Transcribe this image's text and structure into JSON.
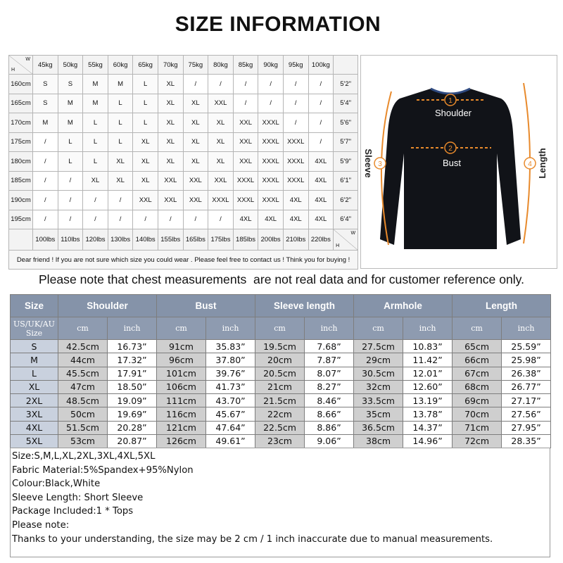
{
  "header": {
    "title": "SIZE INFORMATION"
  },
  "size_guide": {
    "corner_h": "H",
    "corner_w": "W",
    "weights": [
      "45kg",
      "50kg",
      "55kg",
      "60kg",
      "65kg",
      "70kg",
      "75kg",
      "80kg",
      "85kg",
      "90kg",
      "95kg",
      "100kg"
    ],
    "heights": [
      "160cm",
      "165cm",
      "170cm",
      "175cm",
      "180cm",
      "185cm",
      "190cm",
      "195cm"
    ],
    "feet": [
      "5'2\"",
      "5'4\"",
      "5'6\"",
      "5'7\"",
      "5'9\"",
      "6'1\"",
      "6'2\"",
      "6'4\""
    ],
    "pounds": [
      "100lbs",
      "110lbs",
      "120lbs",
      "130lbs",
      "140lbs",
      "155lbs",
      "165lbs",
      "175lbs",
      "185lbs",
      "200lbs",
      "210lbs",
      "220lbs"
    ],
    "grid": [
      [
        "S",
        "S",
        "M",
        "M",
        "L",
        "XL",
        "/",
        "/",
        "/",
        "/",
        "/",
        "/"
      ],
      [
        "S",
        "M",
        "M",
        "L",
        "L",
        "XL",
        "XL",
        "XXL",
        "/",
        "/",
        "/",
        "/"
      ],
      [
        "M",
        "M",
        "L",
        "L",
        "L",
        "XL",
        "XL",
        "XL",
        "XXL",
        "XXXL",
        "/",
        "/"
      ],
      [
        "/",
        "L",
        "L",
        "L",
        "XL",
        "XL",
        "XL",
        "XL",
        "XXL",
        "XXXL",
        "XXXL",
        "/"
      ],
      [
        "/",
        "L",
        "L",
        "XL",
        "XL",
        "XL",
        "XL",
        "XL",
        "XXL",
        "XXXL",
        "XXXL",
        "4XL"
      ],
      [
        "/",
        "/",
        "XL",
        "XL",
        "XL",
        "XXL",
        "XXL",
        "XXL",
        "XXXL",
        "XXXL",
        "XXXL",
        "4XL"
      ],
      [
        "/",
        "/",
        "/",
        "/",
        "XXL",
        "XXL",
        "XXL",
        "XXXL",
        "XXXL",
        "XXXL",
        "4XL",
        "4XL"
      ],
      [
        "/",
        "/",
        "/",
        "/",
        "/",
        "/",
        "/",
        "/",
        "4XL",
        "4XL",
        "4XL",
        "4XL"
      ]
    ],
    "footer": "Dear friend ! If you are not sure which size you could wear . Please feel free to contact us ! Think you for buying !"
  },
  "diagram": {
    "labels": [
      {
        "number": "1",
        "text": "Shoulder"
      },
      {
        "number": "2",
        "text": "Bust"
      },
      {
        "number": "3",
        "text": "Sleeve"
      },
      {
        "number": "4",
        "text": "Length"
      }
    ]
  },
  "note": "Please note that chest measurements  are not real data and for customer reference only.",
  "size_table": {
    "headers": [
      "Size",
      "Shoulder",
      "Bust",
      "Sleeve length",
      "Armhole",
      "Length"
    ],
    "size_label": [
      "US/UK/AU",
      "Size"
    ],
    "units": [
      "cm",
      "inch"
    ],
    "rows": [
      [
        "S",
        "42.5cm",
        "16.73”",
        "91cm",
        "35.83”",
        "19.5cm",
        "7.68”",
        "27.5cm",
        "10.83”",
        "65cm",
        "25.59”"
      ],
      [
        "M",
        "44cm",
        "17.32”",
        "96cm",
        "37.80”",
        "20cm",
        "7.87”",
        "29cm",
        "11.42”",
        "66cm",
        "25.98”"
      ],
      [
        "L",
        "45.5cm",
        "17.91”",
        "101cm",
        "39.76”",
        "20.5cm",
        "8.07”",
        "30.5cm",
        "12.01”",
        "67cm",
        "26.38”"
      ],
      [
        "XL",
        "47cm",
        "18.50”",
        "106cm",
        "41.73”",
        "21cm",
        "8.27”",
        "32cm",
        "12.60”",
        "68cm",
        "26.77”"
      ],
      [
        "2XL",
        "48.5cm",
        "19.09”",
        "111cm",
        "43.70”",
        "21.5cm",
        "8.46”",
        "33.5cm",
        "13.19”",
        "69cm",
        "27.17”"
      ],
      [
        "3XL",
        "50cm",
        "19.69”",
        "116cm",
        "45.67”",
        "22cm",
        "8.66”",
        "35cm",
        "13.78”",
        "70cm",
        "27.56”"
      ],
      [
        "4XL",
        "51.5cm",
        "20.28”",
        "121cm",
        "47.64”",
        "22.5cm",
        "8.86”",
        "36.5cm",
        "14.37”",
        "71cm",
        "27.95”"
      ],
      [
        "5XL",
        "53cm",
        "20.87”",
        "126cm",
        "49.61”",
        "23cm",
        "9.06”",
        "38cm",
        "14.96”",
        "72cm",
        "28.35”"
      ]
    ]
  },
  "details": [
    "Size:S,M,L,XL,2XL,3XL,4XL,5XL",
    "Fabric Material:5%Spandex+95%Nylon",
    "Colour:Black,White",
    "Sleeve Length: Short Sleeve",
    "Package Included:1 * Tops",
    "Please note:",
    "Thanks to your understanding, the size may be 2 cm / 1 inch inaccurate due to manual measurements."
  ]
}
